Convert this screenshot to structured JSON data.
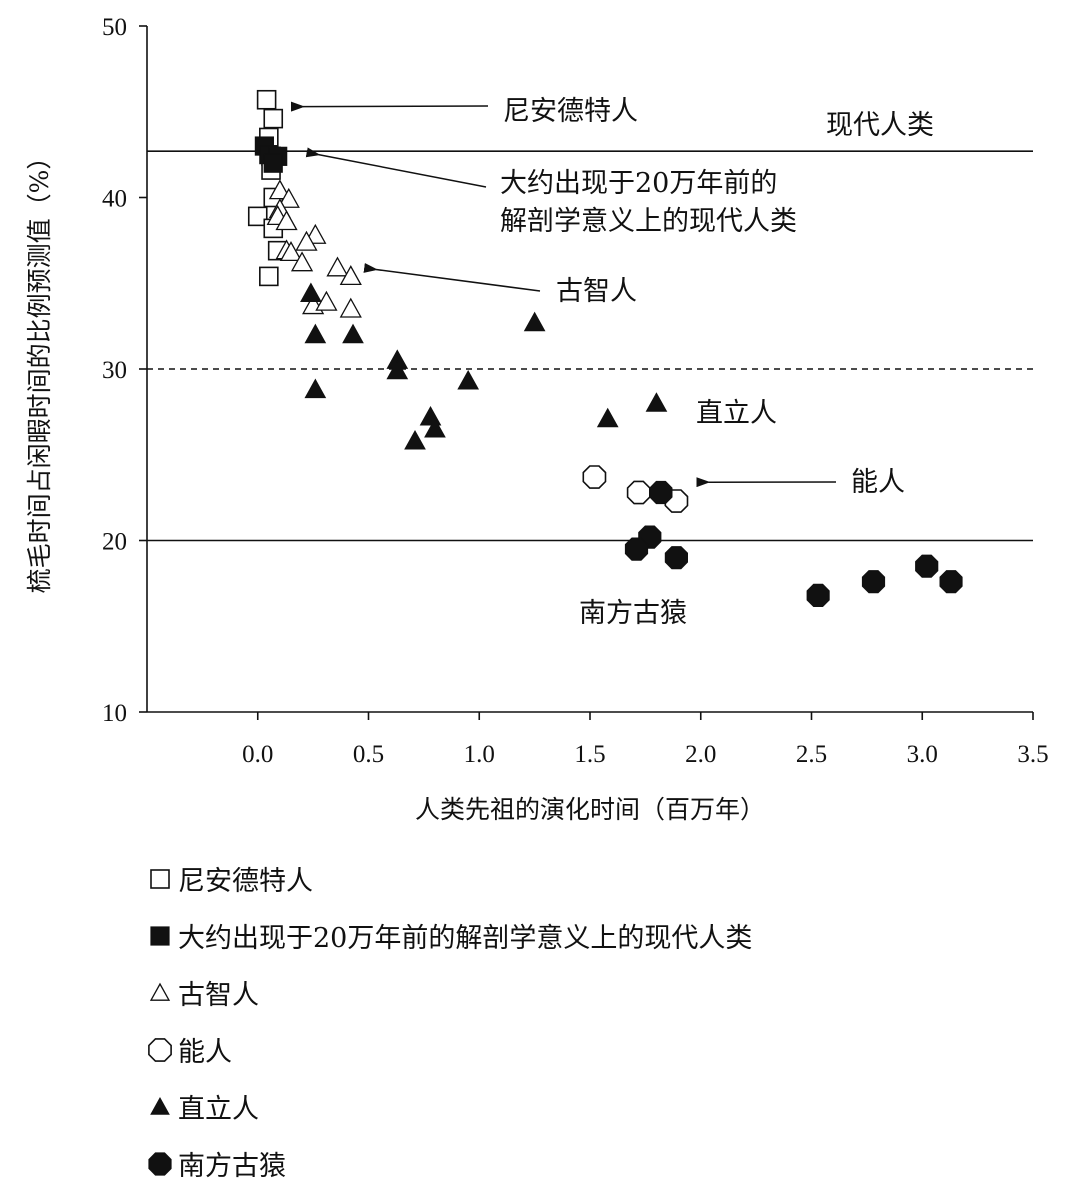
{
  "chart_data": {
    "type": "scatter",
    "title": "",
    "xlabel": "人类先祖的演化时间（百万年）",
    "ylabel": "梳毛时间占闲暇时间的比例预测值（%）",
    "xlim": [
      -0.5,
      3.5
    ],
    "ylim": [
      10,
      50
    ],
    "xticks": [
      "0.0",
      "0.5",
      "1.0",
      "1.5",
      "2.0",
      "2.5",
      "3.0",
      "3.5"
    ],
    "yticks": [
      "10",
      "20",
      "30",
      "40",
      "50"
    ],
    "grid": false,
    "legend_position": "bottom",
    "reference_lines": [
      {
        "y": 42.7,
        "style": "solid",
        "label": "现代人类"
      },
      {
        "y": 30,
        "style": "dashed",
        "label": ""
      },
      {
        "y": 20,
        "style": "solid",
        "label": ""
      }
    ],
    "annotations": [
      {
        "text": "尼安德特人",
        "text_x": 1.1,
        "text_y": 44.3,
        "arrow_to": [
          0.15,
          45.3
        ]
      },
      {
        "text": "大约出现于20万年前的",
        "text_x": 1.1,
        "text_y": 39.2,
        "arrow_to": [
          0.22,
          42.5
        ]
      },
      {
        "text": "解剖学意义上的现代人类",
        "text_x": 1.1,
        "text_y": 39.2,
        "line": 2
      },
      {
        "text": "古智人",
        "text_x": 1.35,
        "text_y": 34.8,
        "arrow_to": [
          0.48,
          35.8
        ]
      },
      {
        "text": "直立人",
        "text_x": 1.98,
        "text_y": 26.6
      },
      {
        "text": "能人",
        "text_x": 2.6,
        "text_y": 22.5,
        "arrow_to": [
          1.98,
          23.4
        ]
      },
      {
        "text": "南方古猿",
        "text_x": 1.45,
        "text_y": 15.3
      }
    ],
    "series": [
      {
        "name": "尼安德特人",
        "marker": "square-open",
        "points": [
          [
            0.04,
            45.7
          ],
          [
            0.07,
            44.6
          ],
          [
            0.05,
            43.5
          ],
          [
            0.06,
            42.4
          ],
          [
            0.06,
            41.6
          ],
          [
            0.07,
            40.0
          ],
          [
            0.0,
            38.9
          ],
          [
            0.07,
            38.2
          ],
          [
            0.09,
            36.9
          ],
          [
            0.05,
            35.4
          ]
        ]
      },
      {
        "name": "大约出现于20万年前的解剖学意义上的现代人类",
        "marker": "square-filled",
        "points": [
          [
            0.03,
            43.0
          ],
          [
            0.05,
            42.5
          ],
          [
            0.09,
            42.4
          ],
          [
            0.07,
            42.0
          ]
        ]
      },
      {
        "name": "古智人",
        "marker": "triangle-open",
        "points": [
          [
            0.1,
            40.4
          ],
          [
            0.14,
            39.9
          ],
          [
            0.1,
            39.3
          ],
          [
            0.09,
            38.9
          ],
          [
            0.13,
            38.6
          ],
          [
            0.26,
            37.8
          ],
          [
            0.22,
            37.4
          ],
          [
            0.13,
            36.9
          ],
          [
            0.15,
            36.8
          ],
          [
            0.2,
            36.2
          ],
          [
            0.36,
            35.9
          ],
          [
            0.42,
            35.4
          ],
          [
            0.25,
            33.7
          ],
          [
            0.31,
            33.9
          ],
          [
            0.42,
            33.5
          ]
        ]
      },
      {
        "name": "能人",
        "marker": "circle-open",
        "points": [
          [
            1.52,
            23.7
          ],
          [
            1.72,
            22.8
          ],
          [
            1.89,
            22.3
          ]
        ]
      },
      {
        "name": "直立人",
        "marker": "triangle-filled",
        "points": [
          [
            0.24,
            34.4
          ],
          [
            1.25,
            32.7
          ],
          [
            0.26,
            32.0
          ],
          [
            0.43,
            32.0
          ],
          [
            0.63,
            30.5
          ],
          [
            0.63,
            29.9
          ],
          [
            0.95,
            29.3
          ],
          [
            0.26,
            28.8
          ],
          [
            1.8,
            28.0
          ],
          [
            0.78,
            27.2
          ],
          [
            1.58,
            27.1
          ],
          [
            0.8,
            26.5
          ],
          [
            0.71,
            25.8
          ]
        ]
      },
      {
        "name": "南方古猿",
        "marker": "octagon-filled",
        "points": [
          [
            1.82,
            22.8
          ],
          [
            1.77,
            20.2
          ],
          [
            1.71,
            19.5
          ],
          [
            1.89,
            19.0
          ],
          [
            3.02,
            18.5
          ],
          [
            3.13,
            17.6
          ],
          [
            2.78,
            17.6
          ],
          [
            2.53,
            16.8
          ]
        ]
      }
    ]
  },
  "legend": [
    {
      "label": "尼安德特人",
      "marker": "square-open"
    },
    {
      "label": "大约出现于20万年前的解剖学意义上的现代人类",
      "marker": "square-filled"
    },
    {
      "label": "古智人",
      "marker": "triangle-open"
    },
    {
      "label": "能人",
      "marker": "circle-open"
    },
    {
      "label": "直立人",
      "marker": "triangle-filled"
    },
    {
      "label": "南方古猿",
      "marker": "octagon-filled"
    }
  ]
}
